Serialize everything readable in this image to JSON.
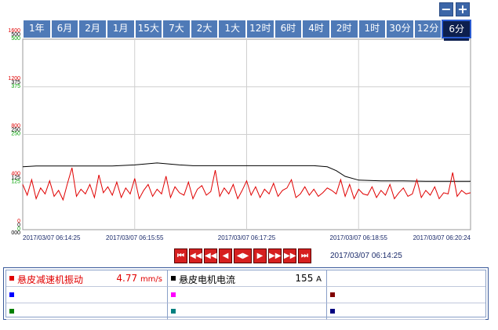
{
  "toolbar": {
    "zoom_out_label": "−",
    "zoom_in_label": "+"
  },
  "tabs": [
    {
      "label": "1年",
      "active": false
    },
    {
      "label": "6月",
      "active": false
    },
    {
      "label": "2月",
      "active": false
    },
    {
      "label": "1月",
      "active": false
    },
    {
      "label": "15大",
      "active": false
    },
    {
      "label": "7大",
      "active": false
    },
    {
      "label": "2大",
      "active": false
    },
    {
      "label": "1大",
      "active": false
    },
    {
      "label": "12时",
      "active": false
    },
    {
      "label": "6时",
      "active": false
    },
    {
      "label": "4时",
      "active": false
    },
    {
      "label": "2时",
      "active": false
    },
    {
      "label": "1时",
      "active": false
    },
    {
      "label": "30分",
      "active": false
    },
    {
      "label": "12分",
      "active": false
    },
    {
      "label": "6分",
      "active": true
    }
  ],
  "chart_data": {
    "type": "line",
    "x_ticks": [
      "2017/03/07 06:14:25",
      "2017/03/07 06:15:55",
      "2017/03/07 06:17:25",
      "2017/03/07 06:18:55",
      "2017/03/07 06:20:24"
    ],
    "y_axes": [
      {
        "color": "#e00000",
        "ticks": [
          "1600",
          "1200",
          "800",
          "400",
          "0"
        ]
      },
      {
        "color": "#000000",
        "ticks": [
          "500",
          "375",
          "250",
          "125",
          "0"
        ]
      },
      {
        "color": "#00a000",
        "ticks": [
          "500",
          "375",
          "250",
          "125",
          "0"
        ]
      },
      {
        "color": "#000000",
        "ticks": [
          "",
          "",
          "",
          "",
          "000"
        ]
      }
    ],
    "series": [
      {
        "name": "悬皮电机电流",
        "color": "#000000",
        "axis_max": 500,
        "x": [
          0,
          0.03,
          0.05,
          0.2,
          0.25,
          0.3,
          0.3,
          0.35,
          0.38,
          0.4,
          0.45,
          0.5,
          0.55,
          0.6,
          0.65,
          0.68,
          0.7,
          0.72,
          0.75,
          0.8,
          0.85,
          0.9,
          0.95,
          1.0
        ],
        "y": [
          165,
          167,
          167,
          167,
          170,
          175,
          175,
          170,
          168,
          168,
          168,
          168,
          168,
          168,
          168,
          165,
          155,
          140,
          130,
          128,
          128,
          127,
          127,
          127
        ]
      },
      {
        "name": "悬皮减速机振动",
        "color": "#e00000",
        "axis_max": 1600,
        "x": [
          0,
          0.01,
          0.02,
          0.03,
          0.04,
          0.05,
          0.06,
          0.07,
          0.08,
          0.09,
          0.1,
          0.11,
          0.12,
          0.13,
          0.14,
          0.15,
          0.16,
          0.17,
          0.18,
          0.19,
          0.2,
          0.21,
          0.22,
          0.23,
          0.24,
          0.25,
          0.26,
          0.27,
          0.28,
          0.29,
          0.3,
          0.31,
          0.32,
          0.33,
          0.34,
          0.35,
          0.36,
          0.37,
          0.38,
          0.39,
          0.4,
          0.41,
          0.42,
          0.43,
          0.44,
          0.45,
          0.46,
          0.47,
          0.48,
          0.49,
          0.5,
          0.51,
          0.52,
          0.53,
          0.54,
          0.55,
          0.56,
          0.57,
          0.58,
          0.59,
          0.6,
          0.61,
          0.62,
          0.63,
          0.64,
          0.65,
          0.66,
          0.67,
          0.68,
          0.69,
          0.7,
          0.71,
          0.72,
          0.73,
          0.74,
          0.75,
          0.76,
          0.77,
          0.78,
          0.79,
          0.8,
          0.81,
          0.82,
          0.83,
          0.84,
          0.85,
          0.86,
          0.87,
          0.88,
          0.89,
          0.9,
          0.91,
          0.92,
          0.93,
          0.94,
          0.95,
          0.96,
          0.97,
          0.98,
          0.99,
          1.0
        ],
        "y": [
          380,
          290,
          420,
          260,
          350,
          300,
          410,
          280,
          330,
          250,
          390,
          520,
          280,
          340,
          300,
          380,
          270,
          460,
          310,
          360,
          290,
          400,
          270,
          350,
          300,
          430,
          260,
          330,
          380,
          280,
          340,
          300,
          450,
          270,
          360,
          310,
          290,
          400,
          260,
          340,
          370,
          290,
          320,
          500,
          280,
          350,
          300,
          380,
          260,
          330,
          410,
          290,
          360,
          270,
          340,
          300,
          390,
          280,
          330,
          350,
          420,
          270,
          300,
          360,
          290,
          340,
          280,
          310,
          350,
          330,
          300,
          420,
          280,
          380,
          260,
          340,
          300,
          290,
          360,
          270,
          330,
          290,
          380,
          260,
          310,
          350,
          280,
          300,
          420,
          270,
          330,
          290,
          360,
          260,
          310,
          300,
          480,
          280,
          330,
          300,
          310
        ]
      }
    ]
  },
  "nav": {
    "buttons": [
      {
        "name": "first-button",
        "label": "⏮"
      },
      {
        "name": "fast-back-button",
        "label": "◀◀"
      },
      {
        "name": "back-button",
        "label": "◀◀"
      },
      {
        "name": "step-back-button",
        "label": "◀"
      },
      {
        "name": "expand-button",
        "label": "◀▶"
      },
      {
        "name": "step-forward-button",
        "label": "▶"
      },
      {
        "name": "forward-button",
        "label": "▶▶"
      },
      {
        "name": "fast-forward-button",
        "label": "▶▶"
      },
      {
        "name": "last-button",
        "label": "⏭"
      }
    ],
    "time": "2017/03/07 06:14:25"
  },
  "legend": {
    "cells": [
      {
        "color": "#e00000",
        "name": "悬皮减速机振动",
        "value": "4.77",
        "unit": "mm/s",
        "text_color": "#e00000"
      },
      {
        "color": "#000000",
        "name": "悬皮电机电流",
        "value": "155",
        "unit": "A",
        "text_color": "#000000"
      },
      {
        "color": "",
        "name": "",
        "value": "",
        "unit": "",
        "text_color": "#000000"
      },
      {
        "color": "#0000ff",
        "name": "",
        "value": "",
        "unit": "",
        "text_color": "#000000"
      },
      {
        "color": "#ff00ff",
        "name": "",
        "value": "",
        "unit": "",
        "text_color": "#000000"
      },
      {
        "color": "#800000",
        "name": "",
        "value": "",
        "unit": "",
        "text_color": "#000000"
      },
      {
        "color": "#008000",
        "name": "",
        "value": "",
        "unit": "",
        "text_color": "#000000"
      },
      {
        "color": "#008080",
        "name": "",
        "value": "",
        "unit": "",
        "text_color": "#000000"
      },
      {
        "color": "#000080",
        "name": "",
        "value": "",
        "unit": "",
        "text_color": "#000000"
      }
    ]
  }
}
